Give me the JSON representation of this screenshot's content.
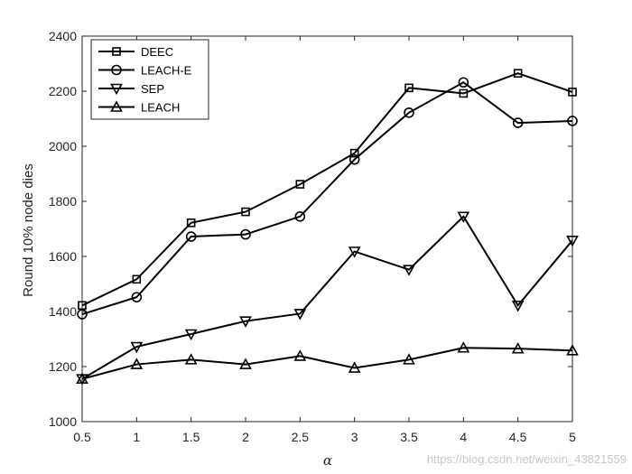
{
  "chart_data": {
    "type": "line",
    "title": "",
    "xlabel": "α",
    "ylabel": "Round 10% node dies",
    "xlim": [
      0.5,
      5
    ],
    "ylim": [
      1000,
      2400
    ],
    "x": [
      0.5,
      1,
      1.5,
      2,
      2.5,
      3,
      3.5,
      4,
      4.5,
      5
    ],
    "xticks": [
      "0.5",
      "1",
      "1.5",
      "2",
      "2.5",
      "3",
      "3.5",
      "4",
      "4.5",
      "5"
    ],
    "yticks": [
      "1000",
      "1200",
      "1400",
      "1600",
      "1800",
      "2000",
      "2200",
      "2400"
    ],
    "grid": false,
    "legend_position": "top-left",
    "series": [
      {
        "name": "DEEC",
        "marker": "square",
        "values": [
          1422,
          1517,
          1722,
          1762,
          1862,
          1975,
          2212,
          2192,
          2265,
          2197
        ]
      },
      {
        "name": "LEACH-E",
        "marker": "circle",
        "values": [
          1390,
          1452,
          1672,
          1680,
          1745,
          1952,
          2122,
          2232,
          2085,
          2092
        ]
      },
      {
        "name": "SEP",
        "marker": "triangle-down",
        "values": [
          1155,
          1272,
          1318,
          1365,
          1392,
          1618,
          1552,
          1745,
          1422,
          1658
        ]
      },
      {
        "name": "LEACH",
        "marker": "triangle-up",
        "values": [
          1155,
          1208,
          1225,
          1208,
          1238,
          1195,
          1225,
          1268,
          1265,
          1258
        ]
      }
    ]
  },
  "watermark": "https://blog.csdn.net/weixin_43821559"
}
